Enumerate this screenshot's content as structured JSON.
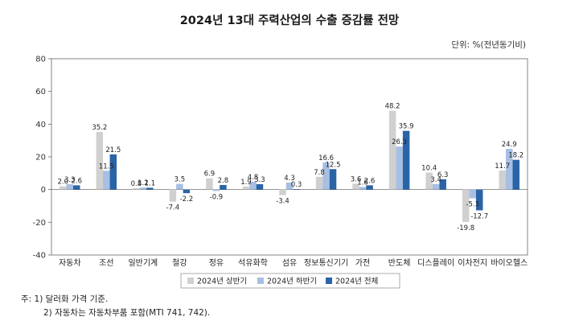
{
  "chart_data": {
    "type": "bar",
    "title": "2024년 13대 주력산업의 수출 증감률 전망",
    "unit": "단위: %(전년동기비)",
    "categories": [
      "자동차",
      "조선",
      "일반기계",
      "철강",
      "정유",
      "석유화학",
      "섬유",
      "정보통신기기",
      "가전",
      "반도체",
      "디스플레이",
      "이차전지",
      "바이오헬스"
    ],
    "ylim": [
      -40,
      80
    ],
    "yticks": [
      -40,
      -20,
      0,
      20,
      40,
      60,
      80
    ],
    "legend_position": "bottom",
    "series": [
      {
        "name": "2024년 상반기",
        "color": "#d0d0d0",
        "values": [
          2.0,
          35.2,
          0.8,
          -7.4,
          6.9,
          1.9,
          -3.4,
          7.8,
          3.6,
          48.2,
          10.4,
          -19.8,
          11.7
        ],
        "labels": [
          "2.0",
          "35.2",
          "0.8",
          "-7.4",
          "6.9",
          "1.9",
          "-3.4",
          "7.8",
          "3.6",
          "48.2",
          "10.4",
          "-19.8",
          "11.7"
        ]
      },
      {
        "name": "2024년 하반기",
        "color": "#a7bfe2",
        "values": [
          3.3,
          11.5,
          1.2,
          3.5,
          -0.9,
          4.8,
          4.3,
          16.6,
          1.6,
          26.3,
          3.4,
          -5.3,
          24.9
        ],
        "labels": [
          "3.3",
          "11.5",
          "1.2",
          "3.5",
          "-0.9",
          "4.8",
          "4.3",
          "16.6",
          "1.6",
          "26.3",
          "3.4",
          "-5.3",
          "24.9"
        ]
      },
      {
        "name": "2024년 전체",
        "color": "#2a64a6",
        "values": [
          2.6,
          21.5,
          1.1,
          -2.2,
          2.8,
          3.3,
          0.3,
          12.5,
          2.6,
          35.9,
          6.3,
          -12.7,
          18.2
        ],
        "labels": [
          "2.6",
          "21.5",
          "1.1",
          "-2.2",
          "2.8",
          "3.3",
          "0.3",
          "12.5",
          "2.6",
          "35.9",
          "6.3",
          "-12.7",
          "18.2"
        ]
      }
    ]
  },
  "notes": [
    "주: 1) 달러화 가격 기준.",
    "2) 자동차는 자동차부품 포함(MTI 741, 742)."
  ]
}
